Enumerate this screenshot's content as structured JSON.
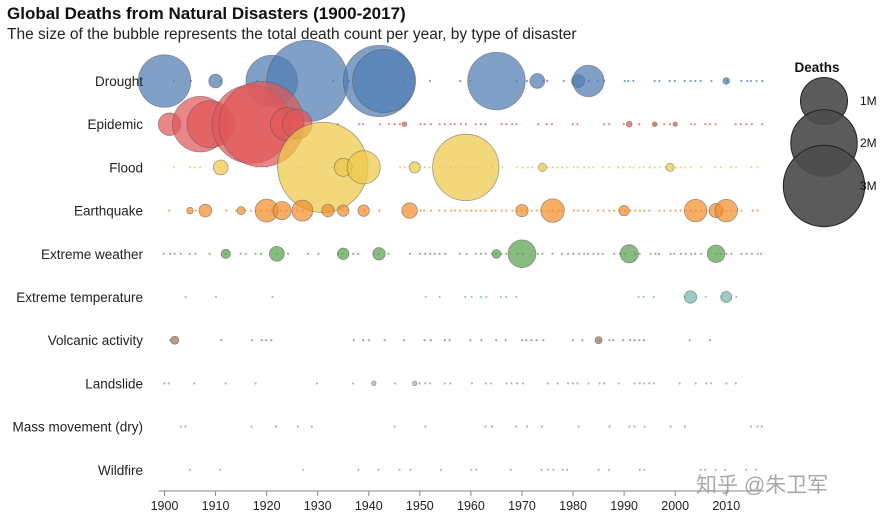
{
  "title": "Global Deaths from Natural Disasters (1900-2017)",
  "subtitle": "The size of the bubble represents the total death count per year, by type of disaster",
  "watermark": "知乎 @朱卫军",
  "chart_data": {
    "type": "scatter",
    "encoding": "bubble",
    "x_range": [
      1900,
      2017
    ],
    "x_ticks": [
      1900,
      1910,
      1920,
      1930,
      1940,
      1950,
      1960,
      1970,
      1980,
      1990,
      2000,
      2010
    ],
    "size_legend": {
      "title": "Deaths",
      "items": [
        {
          "label": "1M",
          "value": 1000000
        },
        {
          "label": "2M",
          "value": 2000000
        },
        {
          "label": "3M",
          "value": 3000000
        }
      ],
      "color": "#4d4d4d"
    },
    "series": [
      {
        "name": "Drought",
        "color": "#4f7cb3",
        "points": [
          {
            "year": 1900,
            "deaths": 1250000
          },
          {
            "year": 1910,
            "deaths": 85000
          },
          {
            "year": 1921,
            "deaths": 1200000
          },
          {
            "year": 1928,
            "deaths": 3000000
          },
          {
            "year": 1942,
            "deaths": 2300000
          },
          {
            "year": 1943,
            "deaths": 1800000
          },
          {
            "year": 1965,
            "deaths": 1500000
          },
          {
            "year": 1973,
            "deaths": 100000
          },
          {
            "year": 1981,
            "deaths": 80000
          },
          {
            "year": 1983,
            "deaths": 450000
          },
          {
            "year": 2010,
            "deaths": 20000
          }
        ]
      },
      {
        "name": "Epidemic",
        "color": "#e15759",
        "points": [
          {
            "year": 1901,
            "deaths": 230000
          },
          {
            "year": 1907,
            "deaths": 1400000
          },
          {
            "year": 1909,
            "deaths": 1000000
          },
          {
            "year": 1917,
            "deaths": 2800000
          },
          {
            "year": 1919,
            "deaths": 3300000
          },
          {
            "year": 1924,
            "deaths": 500000
          },
          {
            "year": 1926,
            "deaths": 400000
          },
          {
            "year": 1947,
            "deaths": 10000
          },
          {
            "year": 1991,
            "deaths": 15000
          },
          {
            "year": 1996,
            "deaths": 10000
          },
          {
            "year": 2000,
            "deaths": 8000
          }
        ]
      },
      {
        "name": "Flood",
        "color": "#edc948",
        "points": [
          {
            "year": 1911,
            "deaths": 100000
          },
          {
            "year": 1931,
            "deaths": 3700000
          },
          {
            "year": 1935,
            "deaths": 145000
          },
          {
            "year": 1939,
            "deaths": 500000
          },
          {
            "year": 1949,
            "deaths": 57000
          },
          {
            "year": 1959,
            "deaths": 2000000
          },
          {
            "year": 1974,
            "deaths": 30000
          },
          {
            "year": 1999,
            "deaths": 30000
          }
        ]
      },
      {
        "name": "Earthquake",
        "color": "#f28e2b",
        "points": [
          {
            "year": 1905,
            "deaths": 20000
          },
          {
            "year": 1908,
            "deaths": 75000
          },
          {
            "year": 1915,
            "deaths": 30000
          },
          {
            "year": 1920,
            "deaths": 240000
          },
          {
            "year": 1923,
            "deaths": 150000
          },
          {
            "year": 1927,
            "deaths": 200000
          },
          {
            "year": 1932,
            "deaths": 70000
          },
          {
            "year": 1935,
            "deaths": 60000
          },
          {
            "year": 1939,
            "deaths": 60000
          },
          {
            "year": 1948,
            "deaths": 110000
          },
          {
            "year": 1970,
            "deaths": 70000
          },
          {
            "year": 1976,
            "deaths": 250000
          },
          {
            "year": 1990,
            "deaths": 50000
          },
          {
            "year": 2004,
            "deaths": 230000
          },
          {
            "year": 2008,
            "deaths": 90000
          },
          {
            "year": 2010,
            "deaths": 230000
          }
        ]
      },
      {
        "name": "Extreme weather",
        "color": "#59a14f",
        "points": [
          {
            "year": 1912,
            "deaths": 40000
          },
          {
            "year": 1922,
            "deaths": 100000
          },
          {
            "year": 1935,
            "deaths": 60000
          },
          {
            "year": 1942,
            "deaths": 70000
          },
          {
            "year": 1965,
            "deaths": 35000
          },
          {
            "year": 1970,
            "deaths": 350000
          },
          {
            "year": 1991,
            "deaths": 150000
          },
          {
            "year": 2008,
            "deaths": 140000
          }
        ]
      },
      {
        "name": "Extreme temperature",
        "color": "#76b7b2",
        "points": [
          {
            "year": 2003,
            "deaths": 70000
          },
          {
            "year": 2010,
            "deaths": 55000
          }
        ]
      },
      {
        "name": "Volcanic activity",
        "color": "#9c755f",
        "points": [
          {
            "year": 1902,
            "deaths": 30000
          },
          {
            "year": 1985,
            "deaths": 23000
          }
        ]
      },
      {
        "name": "Landslide",
        "color": "#bab0ac",
        "points": [
          {
            "year": 1941,
            "deaths": 5000
          },
          {
            "year": 1949,
            "deaths": 5000
          }
        ]
      },
      {
        "name": "Mass movement (dry)",
        "color": "#bab0ac",
        "points": []
      },
      {
        "name": "Wildfire",
        "color": "#bab0ac",
        "points": []
      }
    ]
  }
}
